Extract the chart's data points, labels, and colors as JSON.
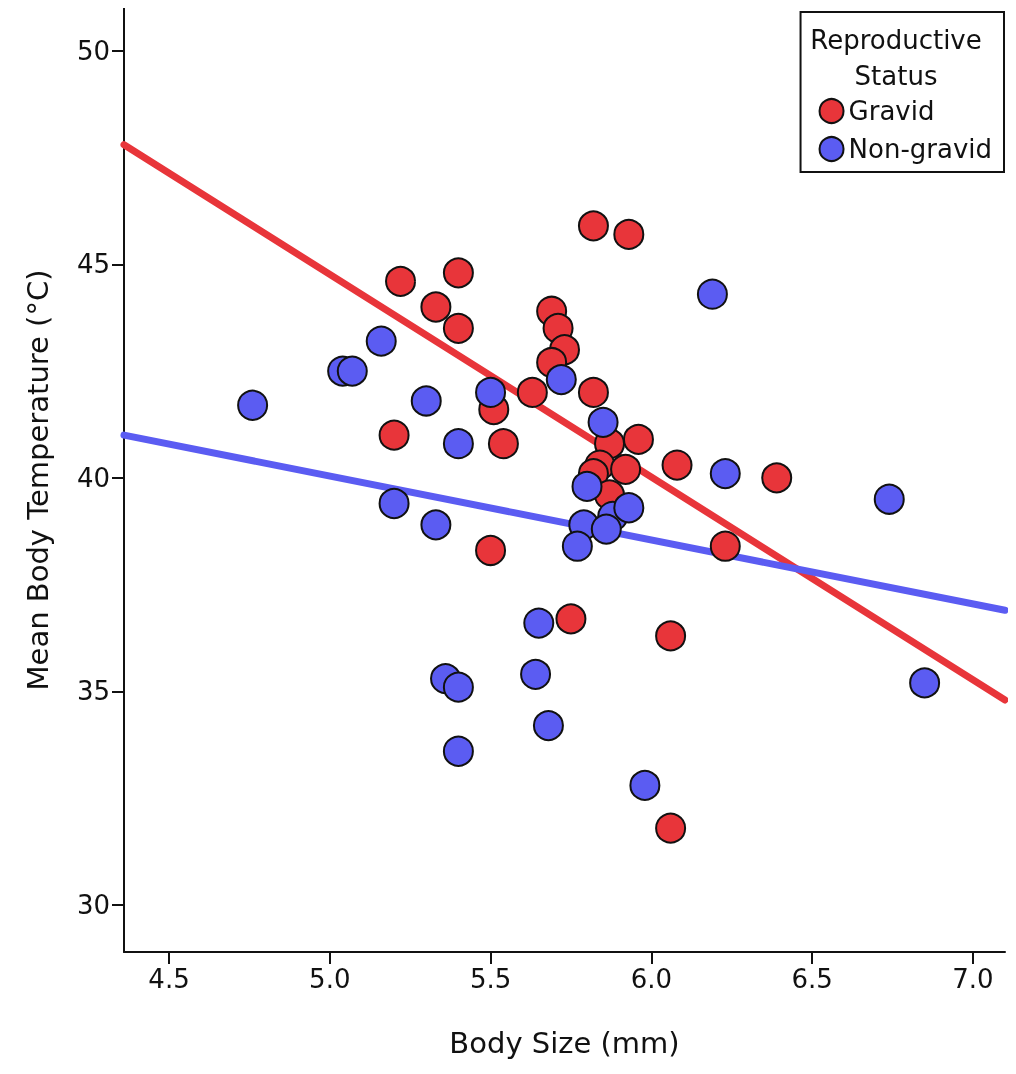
{
  "chart_data": {
    "type": "scatter",
    "xlabel": "Body Size (mm)",
    "ylabel": "Mean Body Temperature (°C)",
    "legend_title": "Reproductive Status",
    "legend": "top right",
    "grid": false,
    "xlim": [
      4.36,
      7.1
    ],
    "ylim": [
      28.9,
      51
    ],
    "xticks": [
      4.5,
      {
        "value": 5,
        "label": "5.0"
      },
      5.5,
      {
        "value": 6,
        "label": "6.0"
      },
      6.5,
      {
        "value": 7,
        "label": "7.0"
      }
    ],
    "yticks": [
      30,
      35,
      40,
      45,
      50
    ],
    "series": [
      {
        "name": "Gravid",
        "color": "#e8353a",
        "marker": "circle",
        "x": [
          5.22,
          5.4,
          5.33,
          5.4,
          5.82,
          5.93,
          5.69,
          5.71,
          5.73,
          5.69,
          5.63,
          5.82,
          5.2,
          5.51,
          5.54,
          5.96,
          5.87,
          5.84,
          5.82,
          5.92,
          5.87,
          6.08,
          6.39,
          6.23,
          5.5,
          5.75,
          6.06,
          6.06
        ],
        "values": [
          44.6,
          44.8,
          44.0,
          43.5,
          45.9,
          45.7,
          43.9,
          43.5,
          43.0,
          42.7,
          42.0,
          42.0,
          41.0,
          41.6,
          40.8,
          40.9,
          40.8,
          40.3,
          40.1,
          40.2,
          39.6,
          40.3,
          40.0,
          38.4,
          38.3,
          36.7,
          36.3,
          31.8
        ]
      },
      {
        "name": "Non-gravid",
        "color": "#5b5cf2",
        "marker": "circle",
        "x": [
          4.76,
          5.04,
          5.07,
          5.16,
          5.3,
          5.4,
          5.2,
          5.33,
          5.5,
          5.72,
          5.85,
          5.8,
          5.88,
          5.93,
          5.79,
          5.77,
          5.86,
          6.19,
          6.23,
          6.74,
          6.85,
          5.65,
          5.64,
          5.36,
          5.4,
          5.68,
          5.4,
          5.98
        ],
        "values": [
          41.7,
          42.5,
          42.5,
          43.2,
          41.8,
          40.8,
          39.4,
          38.9,
          42.0,
          42.3,
          41.3,
          39.8,
          39.1,
          39.3,
          38.9,
          38.4,
          38.8,
          44.3,
          40.1,
          39.5,
          35.2,
          36.6,
          35.4,
          35.3,
          35.1,
          34.2,
          33.6,
          32.8
        ]
      },
      {
        "type": "line",
        "color": "#e8353a",
        "marker": "none",
        "x": [
          4.36,
          7.1
        ],
        "values": [
          47.8,
          34.8
        ]
      },
      {
        "type": "line",
        "color": "#5b5cf2",
        "marker": "none",
        "x": [
          4.36,
          7.1
        ],
        "values": [
          41.0,
          36.9
        ]
      }
    ]
  }
}
